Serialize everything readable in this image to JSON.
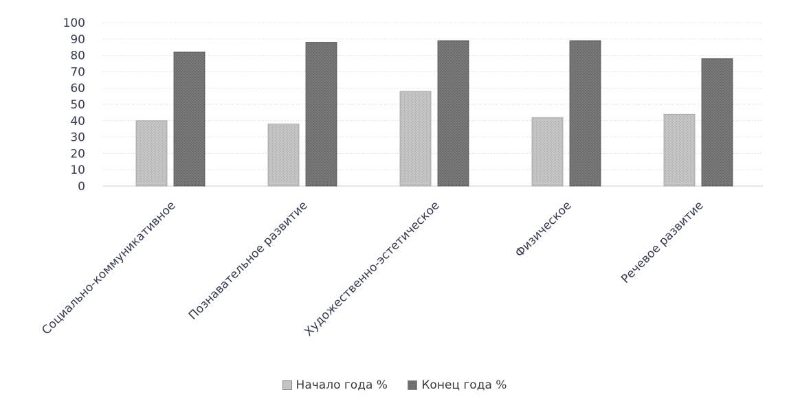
{
  "chart_data": {
    "type": "bar",
    "categories": [
      "Социально-коммуникативное",
      "Познавательное развитие",
      "Художественно-эстетическое",
      "Физическое",
      "Речевое развитие"
    ],
    "series": [
      {
        "name": "Начало года %",
        "values": [
          40,
          38,
          58,
          42,
          44
        ],
        "color": "#bdbdbd"
      },
      {
        "name": "Конец года %",
        "values": [
          82,
          88,
          89,
          89,
          78
        ],
        "color": "#707070"
      }
    ],
    "yticks": [
      "0",
      "10",
      "20",
      "30",
      "40",
      "50",
      "60",
      "70",
      "80",
      "90",
      "100"
    ],
    "ylim": [
      0,
      100
    ],
    "grid": true,
    "legend_position": "bottom"
  }
}
